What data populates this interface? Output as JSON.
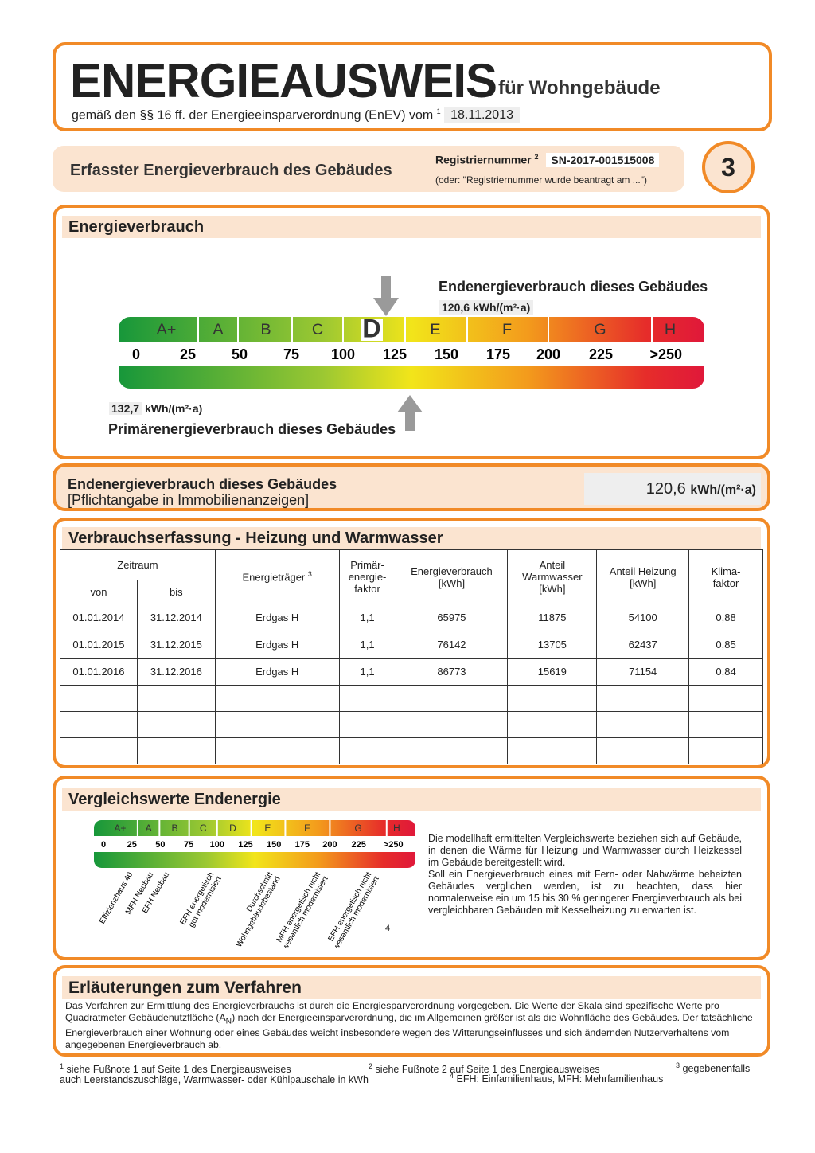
{
  "header": {
    "title": "ENERGIEAUSWEIS",
    "subtitle": "für Wohngebäude",
    "basis": "gemäß den §§ 16 ff. der Energieeinsparverordnung (EnEV) vom",
    "basis_footnote": "1",
    "date": "18.11.2013"
  },
  "section": {
    "title": "Erfasster Energieverbrauch des Gebäudes",
    "registration_label": "Registriernummer",
    "registration_footnote": "2",
    "registration_number": "SN-2017-001515008",
    "registration_note": "(oder: \"Registriernummer wurde beantragt am ...\")",
    "page": "3"
  },
  "consumption_scale": {
    "heading": "Energieverbrauch",
    "final_label": "Endenergieverbrauch dieses Gebäudes",
    "final_value": "120,6",
    "final_unit": "kWh/(m²·a)",
    "classes": [
      "A+",
      "A",
      "B",
      "C",
      "D",
      "E",
      "F",
      "G",
      "H"
    ],
    "ticks": [
      "0",
      "25",
      "50",
      "75",
      "100",
      "125",
      "150",
      "175",
      "200",
      "225",
      ">250"
    ],
    "primary_value": "132,7",
    "primary_unit": "kWh/(m²·a)",
    "primary_label": "Primärenergieverbrauch dieses Gebäudes"
  },
  "mandatory": {
    "line1": "Endenergieverbrauch dieses Gebäudes",
    "line2": "[Pflichtangabe in Immobilienanzeigen]",
    "value": "120,6",
    "unit": "kWh/(m²·a)"
  },
  "records": {
    "heading": "Verbrauchserfassung - Heizung und Warmwasser",
    "columns": {
      "period": "Zeitraum",
      "from": "von",
      "to": "bis",
      "carrier": "Energieträger",
      "carrier_footnote": "3",
      "primary_factor": "Primär-\nenergie-\nfaktor",
      "consumption": "Energieverbrauch\n[kWh]",
      "hot_water": "Anteil\nWarmwasser\n[kWh]",
      "heating": "Anteil Heizung\n[kWh]",
      "climate": "Klima-\nfaktor"
    },
    "rows": [
      [
        "01.01.2014",
        "31.12.2014",
        "Erdgas H",
        "1,1",
        "65975",
        "11875",
        "54100",
        "0,88"
      ],
      [
        "01.01.2015",
        "31.12.2015",
        "Erdgas H",
        "1,1",
        "76142",
        "13705",
        "62437",
        "0,85"
      ],
      [
        "01.01.2016",
        "31.12.2016",
        "Erdgas H",
        "1,1",
        "86773",
        "15619",
        "71154",
        "0,84"
      ]
    ]
  },
  "comparison": {
    "heading": "Vergleichswerte Endenergie",
    "classes": [
      "A+",
      "A",
      "B",
      "C",
      "D",
      "E",
      "F",
      "G",
      "H"
    ],
    "ticks": [
      "0",
      "25",
      "50",
      "75",
      "100",
      "125",
      "150",
      "175",
      "200",
      "225",
      ">250"
    ],
    "references": [
      [
        "Effizienzhaus 40"
      ],
      [
        "MFH Neubau"
      ],
      [
        "EFH Neubau"
      ],
      [
        "EFH energetisch",
        "gut modernisiert"
      ],
      [
        "Durchschnitt",
        "Wohngebäudebestand"
      ],
      [
        "MFH energetisch nicht",
        "wesentlich modernisiert"
      ],
      [
        "EFH energetisch nicht",
        "wesentlich modernisiert"
      ]
    ],
    "footnote": "4",
    "text": [
      "Die modellhaft ermittelten Vergleichswerte beziehen sich auf Gebäude, in denen die Wärme für Heizung und Warmwasser durch Heizkessel im Gebäude bereitgestellt wird.",
      "Soll ein Energieverbrauch eines mit Fern- oder Nahwärme beheizten Gebäudes verglichen werden, ist zu beachten, dass hier normalerweise ein um 15 bis 30 % geringerer Energieverbrauch als bei vergleichbaren Gebäuden mit Kesselheizung zu erwarten ist."
    ]
  },
  "explanation": {
    "heading": "Erläuterungen zum Verfahren",
    "text_before": "Das Verfahren zur Ermittlung des Energieverbrauchs ist durch die Energiesparverordnung vorgegeben. Die Werte der Skala sind spezifische Werte pro Quadratmeter Gebäudenutzfläche (A",
    "subscript": "N",
    "text_after": ") nach der Energieeinsparverordnung, die im Allgemeinen größer ist als die Wohnfläche des Gebäudes. Der tatsächliche Energieverbrauch einer Wohnung oder eines Gebäudes weicht insbesondere wegen des Witterungseinflusses und sich ändernden Nutzerverhaltens vom angegebenen Energieverbrauch ab."
  },
  "footnotes": [
    {
      "mark": "1",
      "text": "siehe Fußnote 1 auf Seite 1 des Energieausweises"
    },
    {
      "mark": "2",
      "text": "siehe Fußnote 2 auf Seite 1 des Energieausweises"
    },
    {
      "mark": "3",
      "text": [
        "gegebenenfalls",
        "auch Leerstandszuschläge, Warmwasser- oder Kühlpauschale in kWh"
      ]
    },
    {
      "mark": "4",
      "text": "EFH: Einfamilienhaus, MFH: Mehrfamilienhaus"
    }
  ]
}
